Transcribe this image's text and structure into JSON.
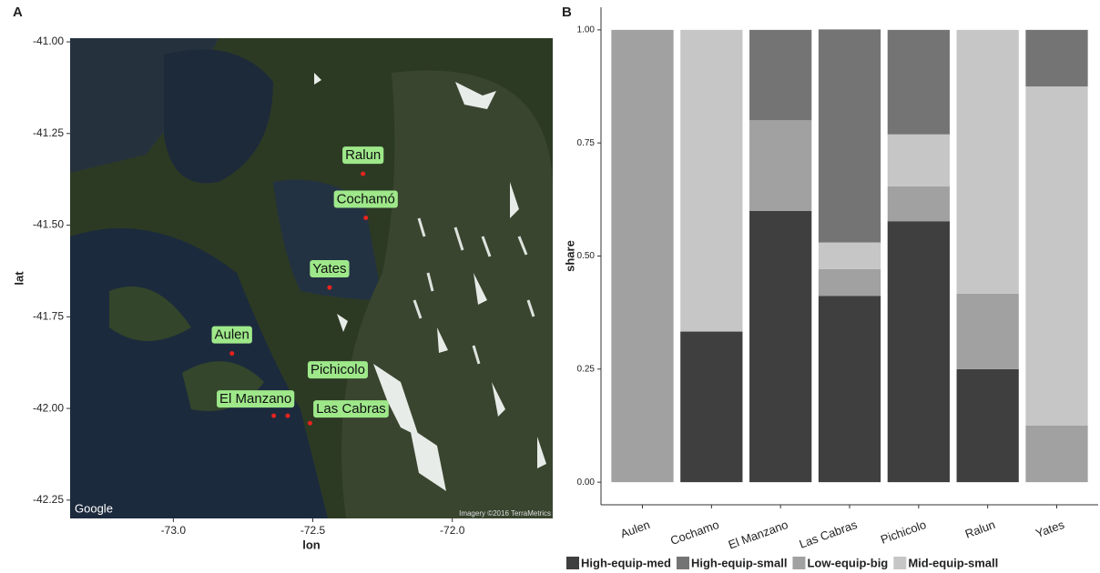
{
  "chart_data": [
    {
      "type": "map",
      "panel": "A",
      "xlabel": "lon",
      "ylabel": "lat",
      "xlim": [
        -73.37,
        -71.64
      ],
      "ylim": [
        -42.3,
        -40.99
      ],
      "xticks": [
        {
          "value": -73,
          "label": "-73.0"
        },
        {
          "value": -72.5,
          "label": "-72.5"
        },
        {
          "value": -72,
          "label": "-72.0"
        }
      ],
      "yticks": [
        {
          "value": -41,
          "label": "-41.00"
        },
        {
          "value": -41.25,
          "label": "-41.25"
        },
        {
          "value": -41.5,
          "label": "-41.50"
        },
        {
          "value": -41.75,
          "label": "-41.75"
        },
        {
          "value": -42,
          "label": "-42.00"
        },
        {
          "value": -42.25,
          "label": "-42.25"
        }
      ],
      "labels": [
        "Ralun",
        "Cochamó",
        "Yates",
        "Aulen",
        "Pichicolo",
        "El Manzano",
        "Las Cabras"
      ],
      "x": [
        -72.32,
        -72.31,
        -72.44,
        -72.79,
        -72.59,
        -72.64,
        -72.51
      ],
      "y": [
        -41.36,
        -41.48,
        -41.67,
        -41.85,
        -42.02,
        -42.02,
        -42.04
      ],
      "color": "#e8231f",
      "label_color": "#9ee88a",
      "credits": [
        "Google",
        "Imagery ©2016 TerraMetrics"
      ]
    },
    {
      "type": "stacked_bar",
      "panel": "B",
      "ylabel": "share",
      "categories": [
        "Aulen",
        "Cochamo",
        "El Manzano",
        "Las Cabras",
        "Pichicolo",
        "Ralun",
        "Yates"
      ],
      "ylim": [
        -0.05,
        1.05
      ],
      "yticks": [
        {
          "value": 0,
          "label": "0.00"
        },
        {
          "value": 0.25,
          "label": "0.25"
        },
        {
          "value": 0.5,
          "label": "0.50"
        },
        {
          "value": 0.75,
          "label": "0.75"
        },
        {
          "value": 1,
          "label": "1.00"
        }
      ],
      "series": [
        {
          "name": "High-equip-med",
          "color": "#3f3f3f",
          "values": [
            0,
            0.333,
            0.6,
            0.412,
            0.577,
            0.25,
            0
          ]
        },
        {
          "name": "High-equip-small",
          "color": "#747474",
          "values": [
            0,
            0,
            0.2,
            0.471,
            0.231,
            0,
            0.125
          ]
        },
        {
          "name": "Low-equip-big",
          "color": "#a1a1a1",
          "values": [
            1,
            0,
            0.2,
            0.059,
            0.077,
            0.167,
            0.125
          ]
        },
        {
          "name": "Mid-equip-small",
          "color": "#c6c6c6",
          "values": [
            0,
            0.667,
            0,
            0.059,
            0.115,
            0.583,
            0.75
          ]
        }
      ]
    }
  ]
}
